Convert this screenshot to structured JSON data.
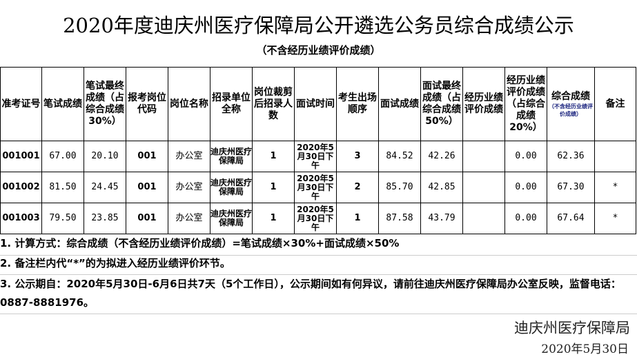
{
  "title": "2020年度迪庆州医疗保障局公开遴选公务员综合成绩公示",
  "subtitle": "（不含经历业绩评价成绩）",
  "headers": [
    "准考证号",
    "笔试成绩",
    "笔试最终成绩（占综合成绩30%）",
    "报考岗位代码",
    "岗位名称",
    "招录单位全称",
    "岗位裁剪后招录人数",
    "面试时间",
    "考生出场顺序",
    "面试成绩",
    "面试最终成绩（占综合成绩50%）",
    "经历业绩评价成绩",
    "经历业绩评价成绩（占综合成绩20%）",
    "综合成绩",
    "备注"
  ],
  "header_composite_note": "（不含经历业绩评价成绩）",
  "rows": [
    {
      "id": "001001",
      "written": "67.00",
      "written_final": "20.10",
      "code": "001",
      "post": "办公室",
      "unit": "迪庆州医疗保障局",
      "quota": "1",
      "time": "2020年5月30日下午",
      "order": "3",
      "interview": "84.52",
      "interview_final": "42.26",
      "exp": "",
      "exp_final": "0.00",
      "total": "62.36",
      "note": ""
    },
    {
      "id": "001002",
      "written": "81.50",
      "written_final": "24.45",
      "code": "001",
      "post": "办公室",
      "unit": "迪庆州医疗保障局",
      "quota": "1",
      "time": "2020年5月30日下午",
      "order": "2",
      "interview": "85.70",
      "interview_final": "42.85",
      "exp": "",
      "exp_final": "0.00",
      "total": "67.30",
      "note": "*"
    },
    {
      "id": "001003",
      "written": "79.50",
      "written_final": "23.85",
      "code": "001",
      "post": "办公室",
      "unit": "迪庆州医疗保障局",
      "quota": "1",
      "time": "2020年5月30日下午",
      "order": "1",
      "interview": "87.58",
      "interview_final": "43.79",
      "exp": "",
      "exp_final": "0.00",
      "total": "67.64",
      "note": "*"
    }
  ],
  "notes": [
    "1. 计算方式：综合成绩（不含经历业绩评价成绩）=笔试成绩×30%+面试成绩×50%",
    "2. 备注栏内代“*”的为拟进入经历业绩评价环节。",
    "3. 公示期自：2020年5月30日-6月6日共7天（5个工作日），公示期间如有何异议，请前往迪庆州医疗保障局办公室反映，监督电话：0887-8881976。"
  ],
  "signature": "迪庆州医疗保障局",
  "date": "2020年5月30日"
}
